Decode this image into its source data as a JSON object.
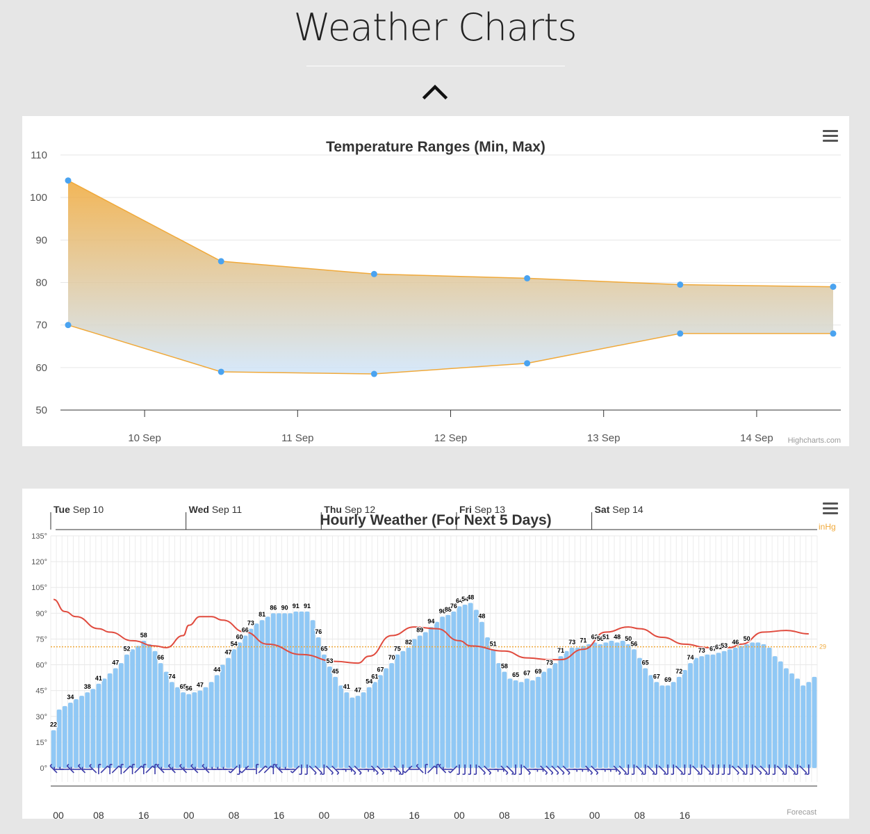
{
  "page": {
    "title": "Weather Charts"
  },
  "chart_data": [
    {
      "type": "area",
      "title": "Temperature Ranges (Min, Max)",
      "credit": "Highcharts.com",
      "categories": [
        "10 Sep",
        "11 Sep",
        "12 Sep",
        "13 Sep",
        "14 Sep"
      ],
      "ylim": [
        50,
        110
      ],
      "yticks": [
        50,
        60,
        70,
        80,
        90,
        100,
        110
      ],
      "x": [
        -0.5,
        0.5,
        1.5,
        2.5,
        3.5,
        4.5
      ],
      "series": [
        {
          "name": "Max",
          "values": [
            104,
            85,
            82,
            81,
            79.5,
            79
          ]
        },
        {
          "name": "Min",
          "values": [
            70,
            59,
            58.5,
            61,
            68,
            68
          ]
        }
      ],
      "fill_top_color": "#f0a93a",
      "fill_bottom_color": "#cfe5fb",
      "line_color": "#f0a93a",
      "marker_color": "#4aa3f0"
    },
    {
      "type": "bar",
      "title": "Hourly Weather (For Next 5 Days)",
      "credit": "Forecast",
      "days": [
        {
          "weekday": "Tue",
          "date": "Sep 10"
        },
        {
          "weekday": "Wed",
          "date": "Sep 11"
        },
        {
          "weekday": "Thu",
          "date": "Sep 12"
        },
        {
          "weekday": "Fri",
          "date": "Sep 13"
        },
        {
          "weekday": "Sat",
          "date": "Sep 14"
        }
      ],
      "hour_labels": [
        "00",
        "08",
        "16",
        "00",
        "08",
        "16",
        "00",
        "08",
        "16",
        "00",
        "08",
        "16",
        "00",
        "08",
        "16"
      ],
      "ylim": [
        0,
        135
      ],
      "yticks": [
        "0°",
        "15°",
        "30°",
        "45°",
        "60°",
        "75°",
        "90°",
        "105°",
        "120°",
        "135°"
      ],
      "pressure_unit": "inHg",
      "pressure_label": "29",
      "pressure_level": 29,
      "temperature_color": "#90c8f5",
      "pressure_color": "#e04a3d",
      "temperature_values": [
        22,
        34,
        36,
        38,
        40,
        42,
        44,
        46,
        49,
        52,
        55,
        58,
        61,
        66,
        69,
        71,
        74,
        72,
        68,
        61,
        56,
        50,
        47,
        44,
        43,
        44,
        45,
        47,
        50,
        54,
        60,
        64,
        69,
        73,
        77,
        81,
        84,
        86,
        88,
        90,
        90,
        90,
        90,
        91,
        91,
        91,
        86,
        76,
        66,
        59,
        53,
        48,
        44,
        41,
        42,
        44,
        47,
        50,
        54,
        58,
        61,
        66,
        68,
        70,
        75,
        77,
        79,
        82,
        85,
        88,
        89,
        91,
        94,
        95,
        96,
        92,
        85,
        76,
        69,
        61,
        56,
        52,
        51,
        50,
        52,
        51,
        53,
        56,
        58,
        61,
        65,
        68,
        70,
        70,
        71,
        72,
        73,
        72,
        73,
        74,
        73,
        74,
        72,
        69,
        64,
        58,
        54,
        50,
        48,
        48,
        50,
        53,
        57,
        61,
        64,
        65,
        66,
        66,
        67,
        68,
        69,
        70,
        71,
        72,
        73,
        73,
        72,
        70,
        65,
        62,
        58,
        55,
        52,
        48,
        50,
        53
      ],
      "temperature_labels": [
        {
          "h": 0,
          "v": "22"
        },
        {
          "h": 3,
          "v": "34"
        },
        {
          "h": 6,
          "v": "38"
        },
        {
          "h": 8,
          "v": "41"
        },
        {
          "h": 11,
          "v": "47"
        },
        {
          "h": 13,
          "v": "52"
        },
        {
          "h": 16,
          "v": "58"
        },
        {
          "h": 19,
          "v": "66"
        },
        {
          "h": 21,
          "v": "74"
        },
        {
          "h": 23,
          "v": "65"
        },
        {
          "h": 24,
          "v": "56"
        },
        {
          "h": 26,
          "v": "47"
        },
        {
          "h": 29,
          "v": "44"
        },
        {
          "h": 31,
          "v": "47"
        },
        {
          "h": 32,
          "v": "54"
        },
        {
          "h": 33,
          "v": "60"
        },
        {
          "h": 34,
          "v": "66"
        },
        {
          "h": 35,
          "v": "73"
        },
        {
          "h": 37,
          "v": "81"
        },
        {
          "h": 39,
          "v": "86"
        },
        {
          "h": 41,
          "v": "90"
        },
        {
          "h": 43,
          "v": "91"
        },
        {
          "h": 45,
          "v": "91"
        },
        {
          "h": 47,
          "v": "76"
        },
        {
          "h": 48,
          "v": "65"
        },
        {
          "h": 49,
          "v": "53"
        },
        {
          "h": 50,
          "v": "45"
        },
        {
          "h": 52,
          "v": "41"
        },
        {
          "h": 54,
          "v": "47"
        },
        {
          "h": 56,
          "v": "54"
        },
        {
          "h": 57,
          "v": "61"
        },
        {
          "h": 58,
          "v": "67"
        },
        {
          "h": 60,
          "v": "70"
        },
        {
          "h": 61,
          "v": "75"
        },
        {
          "h": 63,
          "v": "82"
        },
        {
          "h": 65,
          "v": "89"
        },
        {
          "h": 67,
          "v": "94"
        },
        {
          "h": 69,
          "v": "96"
        },
        {
          "h": 70,
          "v": "88"
        },
        {
          "h": 71,
          "v": "76"
        },
        {
          "h": 72,
          "v": "64"
        },
        {
          "h": 73,
          "v": "54"
        },
        {
          "h": 74,
          "v": "48"
        },
        {
          "h": 76,
          "v": "48"
        },
        {
          "h": 78,
          "v": "51"
        },
        {
          "h": 80,
          "v": "58"
        },
        {
          "h": 82,
          "v": "65"
        },
        {
          "h": 84,
          "v": "67"
        },
        {
          "h": 86,
          "v": "69"
        },
        {
          "h": 88,
          "v": "73"
        },
        {
          "h": 90,
          "v": "71"
        },
        {
          "h": 92,
          "v": "73"
        },
        {
          "h": 94,
          "v": "71"
        },
        {
          "h": 96,
          "v": "62"
        },
        {
          "h": 97,
          "v": "56"
        },
        {
          "h": 98,
          "v": "51"
        },
        {
          "h": 100,
          "v": "48"
        },
        {
          "h": 102,
          "v": "50"
        },
        {
          "h": 103,
          "v": "56"
        },
        {
          "h": 105,
          "v": "65"
        },
        {
          "h": 107,
          "v": "67"
        },
        {
          "h": 109,
          "v": "69"
        },
        {
          "h": 111,
          "v": "72"
        },
        {
          "h": 113,
          "v": "74"
        },
        {
          "h": 115,
          "v": "73"
        },
        {
          "h": 117,
          "v": "67"
        },
        {
          "h": 118,
          "v": "61"
        },
        {
          "h": 119,
          "v": "53"
        },
        {
          "h": 121,
          "v": "46"
        },
        {
          "h": 123,
          "v": "50"
        }
      ],
      "pressure_points": [
        [
          0,
          98
        ],
        [
          2,
          91
        ],
        [
          4,
          88
        ],
        [
          8,
          81
        ],
        [
          10,
          79
        ],
        [
          14,
          74
        ],
        [
          18,
          71
        ],
        [
          20,
          70
        ],
        [
          23,
          77
        ],
        [
          24,
          83
        ],
        [
          26,
          88
        ],
        [
          28,
          88
        ],
        [
          30,
          86
        ],
        [
          34,
          79
        ],
        [
          38,
          72
        ],
        [
          44,
          66
        ],
        [
          50,
          62
        ],
        [
          54,
          61
        ],
        [
          56,
          65
        ],
        [
          60,
          77
        ],
        [
          64,
          82
        ],
        [
          68,
          81
        ],
        [
          72,
          74
        ],
        [
          74,
          71
        ],
        [
          80,
          68
        ],
        [
          84,
          64
        ],
        [
          88,
          63
        ],
        [
          90,
          63
        ],
        [
          94,
          69
        ],
        [
          98,
          79
        ],
        [
          102,
          82
        ],
        [
          104,
          81
        ],
        [
          108,
          76
        ],
        [
          112,
          72
        ],
        [
          116,
          70
        ],
        [
          120,
          70
        ],
        [
          122,
          72
        ],
        [
          126,
          79
        ],
        [
          130,
          80
        ],
        [
          134,
          78
        ]
      ],
      "wind_directions": [
        5,
        4,
        4,
        5,
        4,
        5,
        4,
        5,
        6,
        7,
        6,
        7,
        6,
        7,
        6,
        7,
        6,
        7,
        6,
        5,
        4,
        5,
        4,
        5,
        4,
        5,
        4,
        5,
        4,
        4,
        4,
        4,
        3,
        2,
        3,
        4,
        6,
        7,
        7,
        6,
        5,
        4,
        4,
        3,
        2,
        2,
        1,
        1,
        2,
        1,
        1,
        0,
        0,
        1,
        1,
        0,
        0,
        1,
        1,
        0,
        0,
        1,
        2,
        3,
        4,
        5,
        6,
        7,
        6,
        5,
        4,
        3,
        2,
        2,
        2,
        2,
        1,
        1,
        0,
        0,
        1,
        1,
        2,
        2,
        1,
        0,
        0,
        1,
        1,
        1,
        1,
        1,
        0,
        0,
        0,
        1,
        1,
        0,
        0,
        0,
        1,
        1,
        2,
        2,
        1,
        2,
        1,
        2,
        1,
        2,
        2,
        1,
        2,
        2,
        1,
        2,
        1,
        2,
        2,
        2,
        2,
        1,
        1,
        2,
        2,
        1,
        1,
        2,
        2,
        1,
        2,
        1,
        2,
        1,
        2,
        2
      ]
    }
  ]
}
